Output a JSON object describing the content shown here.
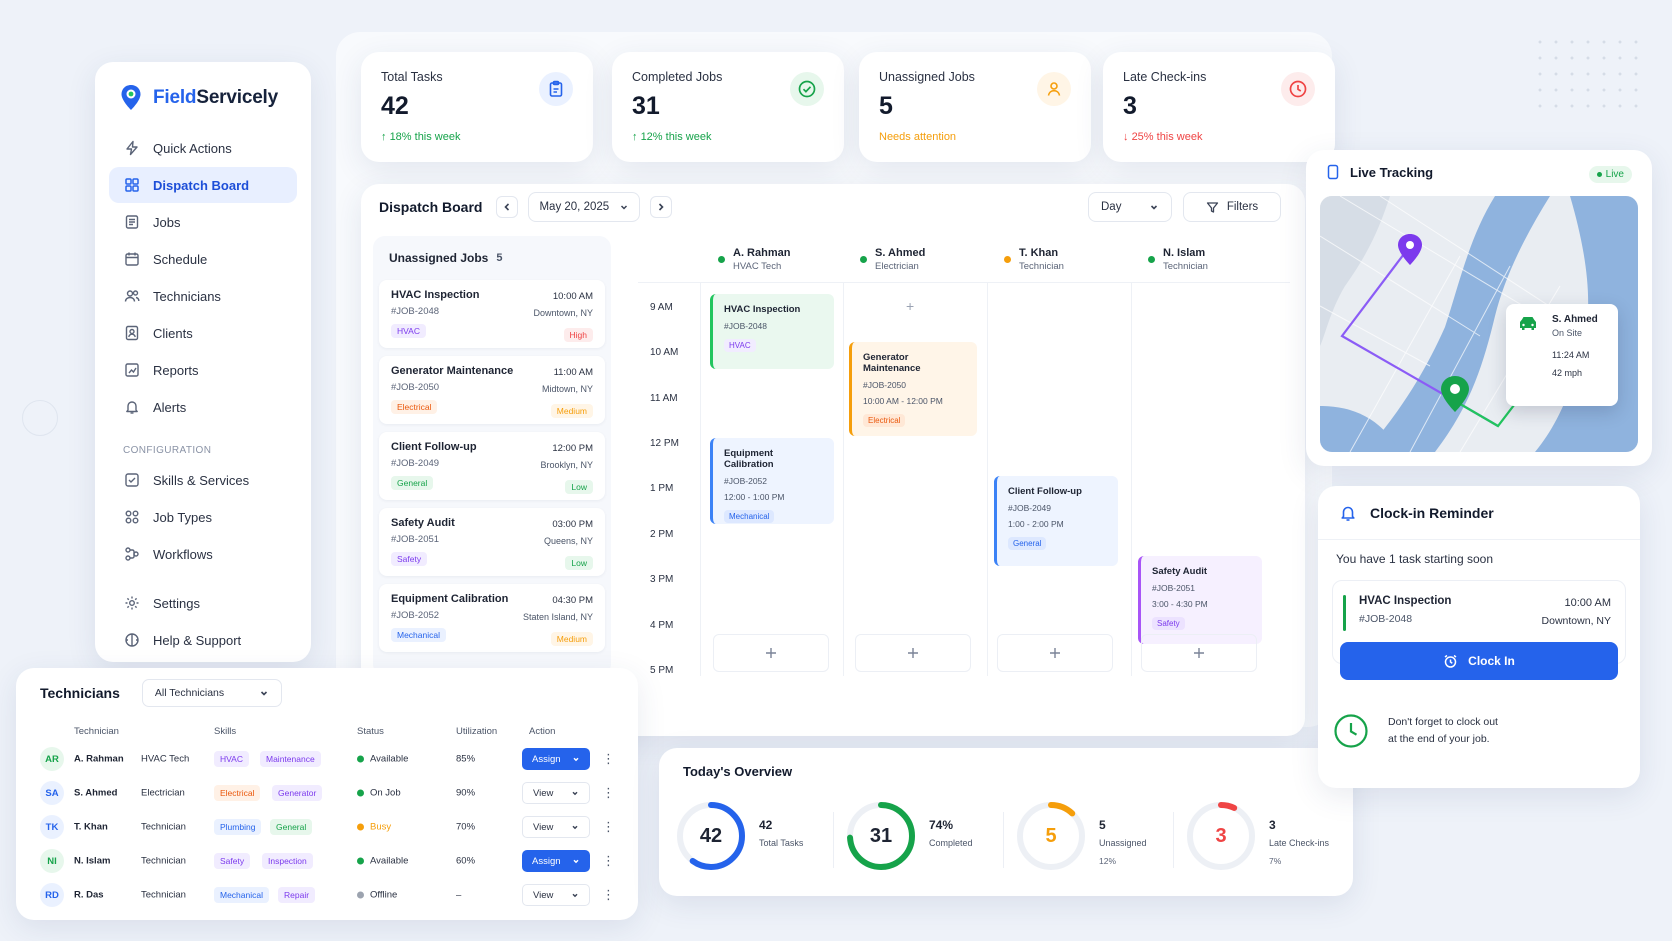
{
  "brand": {
    "name_part1": "Field",
    "name_part2": "Servicely"
  },
  "sidebar": {
    "items": [
      {
        "label": "Quick Actions",
        "icon": "bolt-icon"
      },
      {
        "label": "Dispatch Board",
        "icon": "grid-icon",
        "active": true
      },
      {
        "label": "Jobs",
        "icon": "jobs-icon"
      },
      {
        "label": "Schedule",
        "icon": "calendar-icon"
      },
      {
        "label": "Technicians",
        "icon": "users-icon"
      },
      {
        "label": "Clients",
        "icon": "client-icon"
      },
      {
        "label": "Reports",
        "icon": "reports-icon"
      },
      {
        "label": "Alerts",
        "icon": "bell-icon"
      }
    ],
    "config_heading": "CONFIGURATION",
    "config_items": [
      {
        "label": "Skills & Services",
        "icon": "skills-icon"
      },
      {
        "label": "Job Types",
        "icon": "job-types-icon"
      },
      {
        "label": "Workflows",
        "icon": "workflow-icon"
      }
    ],
    "bottom_items": [
      {
        "label": "Settings",
        "icon": "gear-icon"
      },
      {
        "label": "Help & Support",
        "icon": "help-icon"
      }
    ]
  },
  "stats": [
    {
      "label": "Total Tasks",
      "value": "42",
      "sub": "18% this week",
      "sub_color": "#16a34a",
      "icon": "clipboard-icon",
      "accent": "#2563eb"
    },
    {
      "label": "Completed Jobs",
      "value": "31",
      "sub": "12% this week",
      "sub_color": "#16a34a",
      "icon": "check-circle-icon",
      "accent": "#16a34a"
    },
    {
      "label": "Unassigned Jobs",
      "value": "5",
      "sub": "Needs attention",
      "sub_color": "#f59e0b",
      "icon": "user-icon",
      "accent": "#f59e0b"
    },
    {
      "label": "Late Check-ins",
      "value": "3",
      "sub": "25% this week",
      "sub_color": "#ef4444",
      "icon": "clock-icon",
      "accent": "#ef4444"
    }
  ],
  "dispatch": {
    "title": "Dispatch Board",
    "date": "May 20, 2025",
    "view": "Day",
    "filters_label": "Filters",
    "unassigned_title": "Unassigned Jobs",
    "unassigned_count": "5",
    "unassigned_jobs": [
      {
        "name": "HVAC Inspection",
        "id": "#JOB-2048",
        "time": "10:00 AM",
        "location": "Downtown, NY",
        "tag": "HVAC",
        "priority": "High"
      },
      {
        "name": "Generator Maintenance",
        "id": "#JOB-2050",
        "time": "11:00 AM",
        "location": "Midtown, NY",
        "tag": "Electrical",
        "priority": "Medium"
      },
      {
        "name": "Client Follow-up",
        "id": "#JOB-2049",
        "time": "12:00 PM",
        "location": "Brooklyn, NY",
        "tag": "General",
        "priority": "Low"
      },
      {
        "name": "Safety Audit",
        "id": "#JOB-2051",
        "time": "03:00 PM",
        "location": "Queens, NY",
        "tag": "Safety",
        "priority": "Low"
      },
      {
        "name": "Equipment Calibration",
        "id": "#JOB-2052",
        "time": "04:30 PM",
        "location": "Staten Island, NY",
        "tag": "Mechanical",
        "priority": "Medium"
      }
    ],
    "technicians": [
      {
        "name": "A. Rahman",
        "role": "HVAC Tech",
        "dot": "#16a34a"
      },
      {
        "name": "S. Ahmed",
        "role": "Electrician",
        "dot": "#16a34a"
      },
      {
        "name": "T. Khan",
        "role": "Technician",
        "dot": "#f59e0b"
      },
      {
        "name": "N. Islam",
        "role": "Technician",
        "dot": "#16a34a"
      }
    ],
    "times": [
      "9 AM",
      "10 AM",
      "11 AM",
      "12 PM",
      "1 PM",
      "2 PM",
      "3 PM",
      "4 PM",
      "5 PM"
    ],
    "scheduled": [
      {
        "name": "HVAC Inspection",
        "id": "#JOB-2048",
        "time": "",
        "tag": "HVAC"
      },
      {
        "name": "Generator Maintenance",
        "id": "#JOB-2050",
        "time": "10:00 AM - 12:00 PM",
        "tag": "Electrical"
      },
      {
        "name": "Equipment Calibration",
        "id": "#JOB-2052",
        "time": "12:00 - 1:00 PM",
        "tag": "Mechanical"
      },
      {
        "name": "Client Follow-up",
        "id": "#JOB-2049",
        "time": "1:00 - 2:00 PM",
        "tag": "General"
      },
      {
        "name": "Safety Audit",
        "id": "#JOB-2051",
        "time": "3:00 - 4:30 PM",
        "tag": "Safety"
      }
    ]
  },
  "tech_table": {
    "title": "Technicians",
    "filter": "All Technicians",
    "columns": [
      "Technician",
      "Skills",
      "Status",
      "Utilization",
      "Action"
    ],
    "rows": [
      {
        "initials": "AR",
        "name": "A. Rahman",
        "role": "HVAC Tech",
        "skills": [
          "HVAC",
          "Maintenance"
        ],
        "status": "Available",
        "status_color": "#16a34a",
        "util": "85%",
        "action": "Assign"
      },
      {
        "initials": "SA",
        "name": "S. Ahmed",
        "role": "Electrician",
        "skills": [
          "Electrical",
          "Generator"
        ],
        "status": "On Job",
        "status_color": "#16a34a",
        "util": "90%",
        "action": "View"
      },
      {
        "initials": "TK",
        "name": "T. Khan",
        "role": "Technician",
        "skills": [
          "Plumbing",
          "General"
        ],
        "status": "Busy",
        "status_color": "#f59e0b",
        "util": "70%",
        "action": "View"
      },
      {
        "initials": "NI",
        "name": "N. Islam",
        "role": "Technician",
        "skills": [
          "Safety",
          "Inspection"
        ],
        "status": "Available",
        "status_color": "#16a34a",
        "util": "60%",
        "action": "Assign"
      },
      {
        "initials": "RD",
        "name": "R. Das",
        "role": "Technician",
        "skills": [
          "Mechanical",
          "Repair"
        ],
        "status": "Offline",
        "status_color": "#9ca3af",
        "util": "–",
        "action": "View"
      }
    ]
  },
  "overview": {
    "title": "Today's Overview",
    "items": [
      {
        "ring": "42",
        "value": "42",
        "label": "Total Tasks",
        "pct": "",
        "color": "#2563eb",
        "fraction": 0.6
      },
      {
        "ring": "31",
        "value": "74%",
        "label": "Completed",
        "pct": "",
        "color": "#16a34a",
        "fraction": 0.74
      },
      {
        "ring": "5",
        "value": "5",
        "label": "Unassigned",
        "pct": "12%",
        "color": "#f59e0b",
        "fraction": 0.12
      },
      {
        "ring": "3",
        "value": "3",
        "label": "Late Check-ins",
        "pct": "7%",
        "color": "#ef4444",
        "fraction": 0.07
      }
    ]
  },
  "live": {
    "title": "Live Tracking",
    "badge": "Live",
    "popup": {
      "name": "S. Ahmed",
      "status": "On Site",
      "time": "11:24 AM",
      "speed": "42 mph"
    }
  },
  "clockin": {
    "title": "Clock-in Reminder",
    "subtitle": "You have 1 task starting soon",
    "job": {
      "name": "HVAC Inspection",
      "id": "#JOB-2048",
      "time": "10:00 AM",
      "location": "Downtown, NY"
    },
    "button": "Clock In",
    "note_line1": "Don't forget to clock out",
    "note_line2": "at the end of your job."
  }
}
